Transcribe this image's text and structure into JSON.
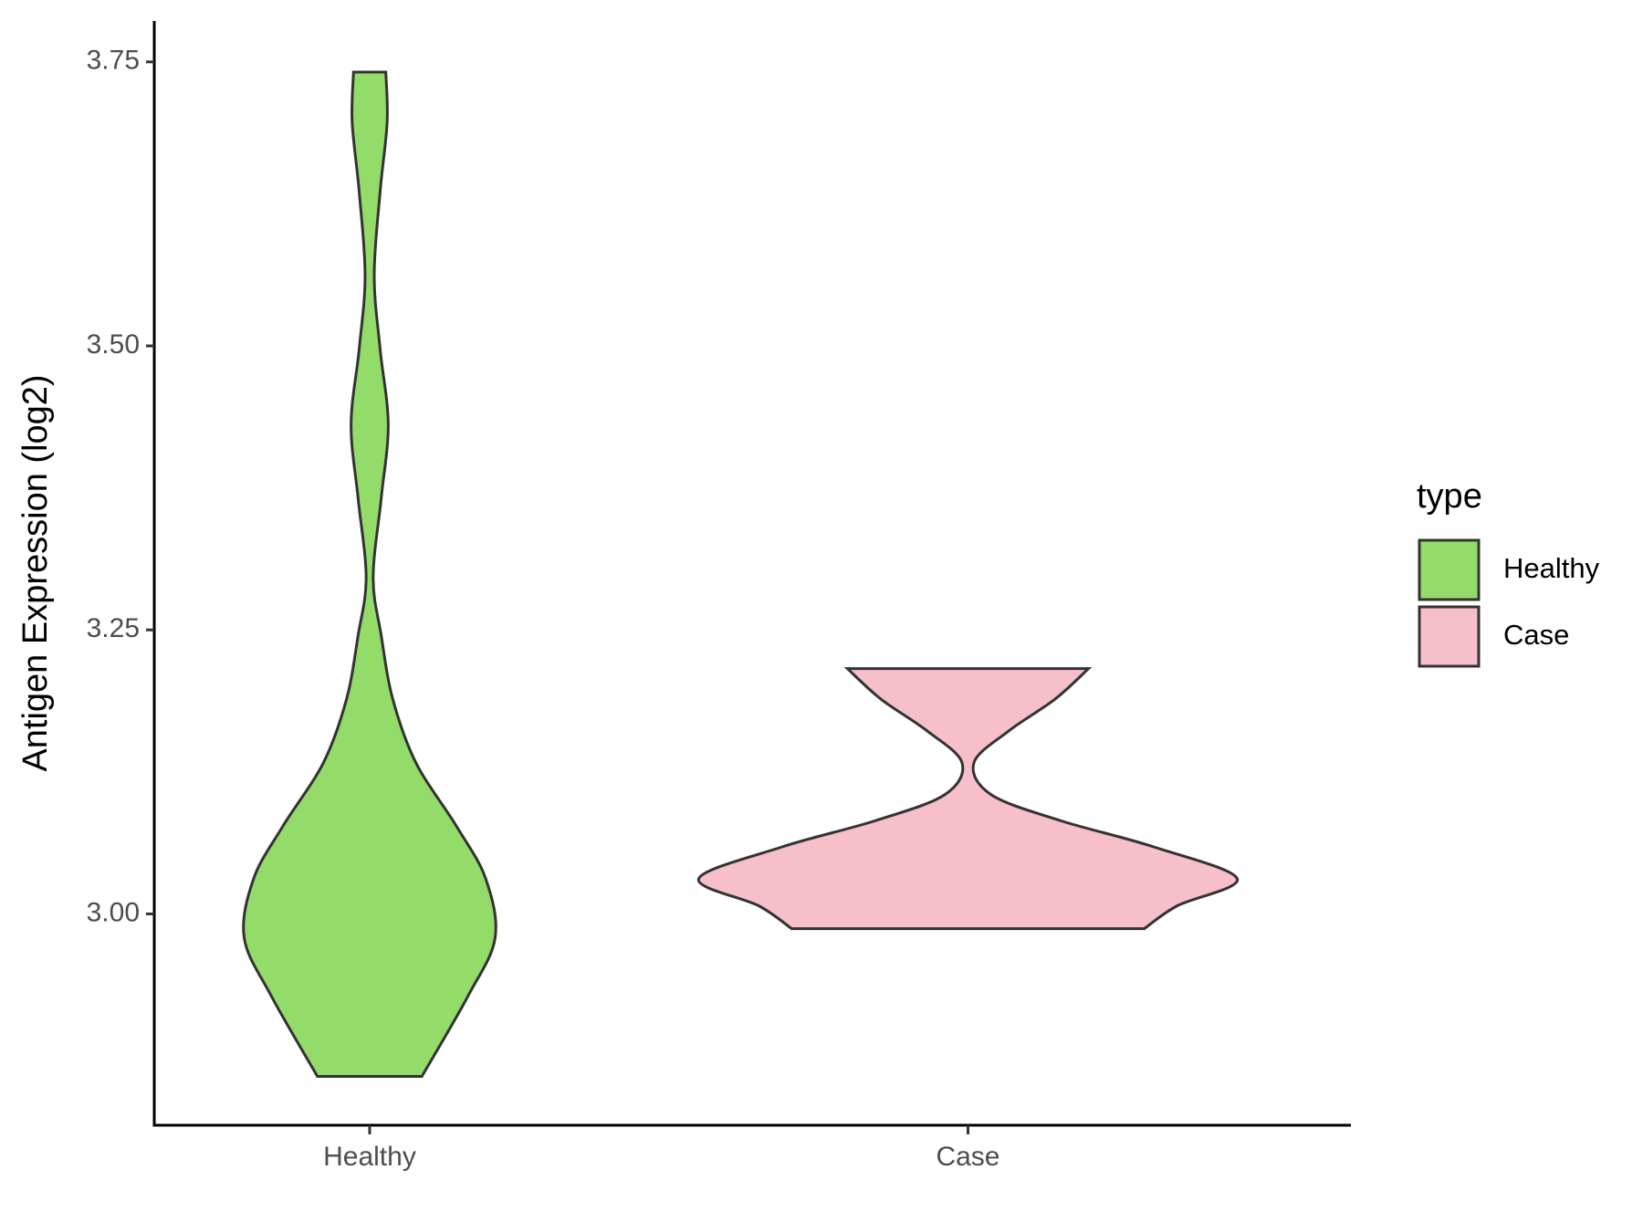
{
  "chart_data": {
    "type": "violin",
    "y_label": "Antigen Expression (log2)",
    "categories": [
      "Healthy",
      "Case"
    ],
    "series": [
      {
        "name": "Healthy",
        "color": "#93dc6a",
        "y": [
          3.741,
          3.697,
          3.636,
          3.562,
          3.497,
          3.431,
          3.366,
          3.296,
          3.245,
          3.189,
          3.133,
          3.077,
          3.031,
          2.979,
          2.928,
          2.857
        ],
        "width": [
          0.06,
          0.065,
          0.039,
          0.017,
          0.039,
          0.069,
          0.043,
          0.013,
          0.043,
          0.086,
          0.172,
          0.323,
          0.431,
          0.466,
          0.366,
          0.194
        ]
      },
      {
        "name": "Case",
        "color": "#f7bfca",
        "y": [
          3.216,
          3.189,
          3.161,
          3.133,
          3.105,
          3.082,
          3.059,
          3.031,
          3.007,
          2.987
        ],
        "width": [
          0.448,
          0.323,
          0.151,
          0.022,
          0.086,
          0.345,
          0.69,
          1,
          0.776,
          0.655
        ]
      }
    ],
    "ylim": [
      2.814,
      3.786
    ],
    "yticks": [
      {
        "value": 3,
        "label": "3.00"
      },
      {
        "value": 3.25,
        "label": "3.25"
      },
      {
        "value": 3.5,
        "label": "3.50"
      },
      {
        "value": 3.75,
        "label": "3.75"
      }
    ],
    "legend": {
      "title": "type",
      "position": "right"
    }
  }
}
